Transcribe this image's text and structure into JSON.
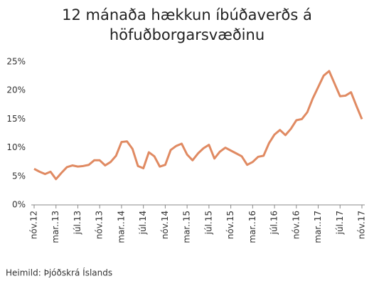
{
  "chart_data": {
    "type": "line",
    "title": [
      "12 mánaða hækkun íbúðaverðs á",
      "höfuðborgarsvæðinu"
    ],
    "source": "Heimild: Þjóðskrá Íslands",
    "categories": [
      "nóv.12",
      null,
      null,
      null,
      "mar..13",
      null,
      null,
      null,
      "júl.13",
      null,
      null,
      null,
      "nóv.13",
      null,
      null,
      null,
      "mar..14",
      null,
      null,
      null,
      "júl.14",
      null,
      null,
      null,
      "nóv.14",
      null,
      null,
      null,
      "mar..15",
      null,
      null,
      null,
      "júl.15",
      null,
      null,
      null,
      "nóv.15",
      null,
      null,
      null,
      "mar..16",
      null,
      null,
      null,
      "júl.16",
      null,
      null,
      null,
      "nóv.16",
      null,
      null,
      null,
      "mar..17",
      null,
      null,
      null,
      "júl.17",
      null,
      null,
      null,
      "nóv.17"
    ],
    "series": [
      {
        "color": "#e08a62",
        "values": [
          6.3,
          5.8,
          5.4,
          5.8,
          4.5,
          5.6,
          6.6,
          6.9,
          6.7,
          6.8,
          7.0,
          7.8,
          7.8,
          6.9,
          7.5,
          8.6,
          11.0,
          11.1,
          9.8,
          6.8,
          6.4,
          9.2,
          8.5,
          6.7,
          7.0,
          9.6,
          10.3,
          10.7,
          8.8,
          7.8,
          9.0,
          9.9,
          10.5,
          8.1,
          9.3,
          10.0,
          9.5,
          9.0,
          8.5,
          7.0,
          7.5,
          8.4,
          8.6,
          10.8,
          12.3,
          13.1,
          12.2,
          13.3,
          14.8,
          15.0,
          16.2,
          18.6,
          20.6,
          22.6,
          23.4,
          21.2,
          19.0,
          19.1,
          19.7,
          17.3,
          15.0
        ]
      }
    ],
    "ylim": [
      0,
      25
    ],
    "yticks": [
      {
        "value": 0,
        "label": "0%"
      },
      {
        "value": 5,
        "label": "5%"
      },
      {
        "value": 10,
        "label": "10%"
      },
      {
        "value": 15,
        "label": "15%"
      },
      {
        "value": 20,
        "label": "20%"
      },
      {
        "value": 25,
        "label": "25%"
      }
    ],
    "grid": false
  }
}
